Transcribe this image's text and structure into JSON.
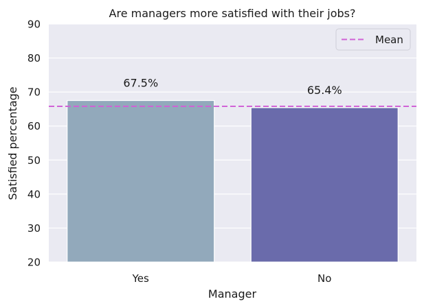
{
  "chart_data": {
    "type": "bar",
    "title": "Are managers more satisfied with their jobs?",
    "xlabel": "Manager",
    "ylabel": "Satisfied percentage",
    "categories": [
      "Yes",
      "No"
    ],
    "values": [
      67.5,
      65.4
    ],
    "data_labels": [
      "67.5%",
      "65.4%"
    ],
    "bar_colors": [
      "#92a9bb",
      "#6a6bab"
    ],
    "ylim": [
      20,
      90
    ],
    "yticks": [
      20,
      30,
      40,
      50,
      60,
      70,
      80,
      90
    ],
    "mean_line": {
      "value": 65.8,
      "label": "Mean",
      "color": "#d062d6"
    },
    "legend_position": "top-right",
    "grid": true,
    "plot_background": "#eaeaf2"
  }
}
